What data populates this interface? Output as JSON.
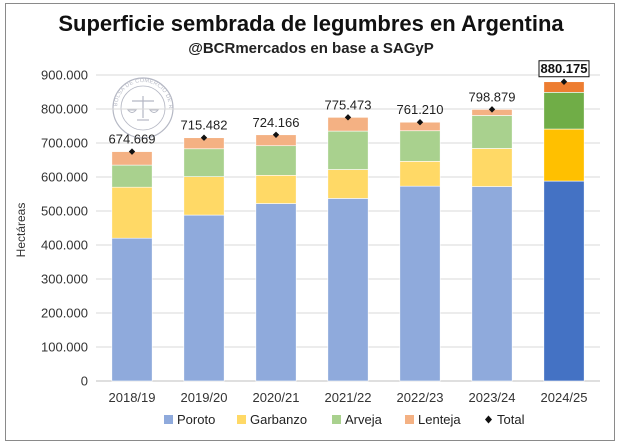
{
  "chart_data": {
    "type": "bar",
    "stacked": true,
    "title": "Superficie sembrada de legumbres en Argentina",
    "subtitle": "@BCRmercados en base a SAGyP",
    "ylabel": "Hectáreas",
    "xlabel": "",
    "ylim": [
      0,
      900000
    ],
    "yticks": [
      0,
      100000,
      200000,
      300000,
      400000,
      500000,
      600000,
      700000,
      800000,
      900000
    ],
    "ytick_labels": [
      "0",
      "100.000",
      "200.000",
      "300.000",
      "400.000",
      "500.000",
      "600.000",
      "700.000",
      "800.000",
      "900.000"
    ],
    "grid": true,
    "legend_position": "bottom",
    "categories": [
      "2018/19",
      "2019/20",
      "2020/21",
      "2021/22",
      "2022/23",
      "2023/24",
      "2024/25"
    ],
    "series": [
      {
        "name": "Poroto",
        "color": "#8FAADC",
        "highlight_color": "#4472C4",
        "values": [
          420000,
          488000,
          522000,
          537000,
          573000,
          572000,
          588000
        ]
      },
      {
        "name": "Garbanzo",
        "color": "#FFD966",
        "highlight_color": "#FFC000",
        "values": [
          150000,
          113000,
          83000,
          85000,
          73000,
          112000,
          153000
        ]
      },
      {
        "name": "Arveja",
        "color": "#A9D18E",
        "highlight_color": "#70AD47",
        "values": [
          65000,
          82000,
          87000,
          113000,
          90000,
          97000,
          108000
        ]
      },
      {
        "name": "Lenteja",
        "color": "#F4B183",
        "highlight_color": "#ED7D31",
        "values": [
          39669,
          32482,
          32166,
          40473,
          25210,
          17879,
          31175
        ]
      }
    ],
    "totals": {
      "name": "Total",
      "values": [
        674669,
        715482,
        724166,
        775473,
        761210,
        798879,
        880175
      ],
      "labels": [
        "674.669",
        "715.482",
        "724.166",
        "775.473",
        "761.210",
        "798.879",
        "880.175"
      ]
    },
    "highlighted_category": "2024/25"
  },
  "watermark": {
    "logo_text": "BOLSA DE COMERCIO DE ROSARIO"
  }
}
